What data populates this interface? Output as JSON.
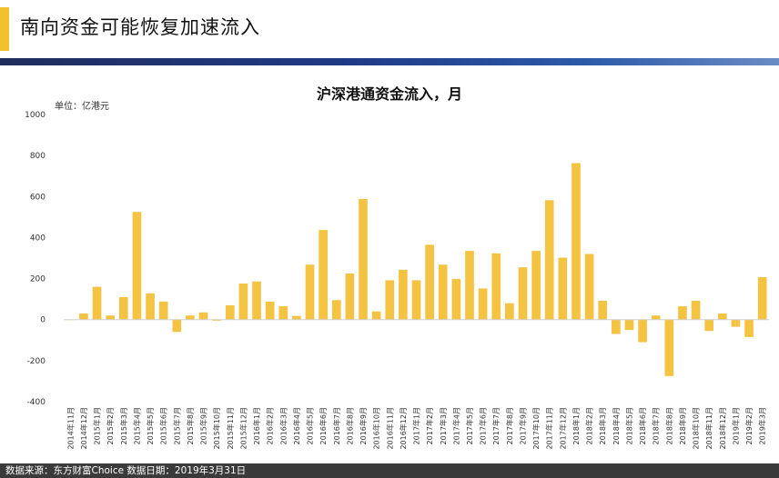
{
  "header": {
    "title": "南向资金可能恢复加速流入"
  },
  "footer": {
    "text": "数据来源：东方财富Choice    数据日期：2019年3月31日"
  },
  "colors": {
    "accent": "#f4c12e",
    "bar": "#f5c342"
  },
  "chart_data": {
    "type": "bar",
    "title": "沪深港通资金流入，月",
    "unit": "单位：亿港元",
    "xlabel": "",
    "ylabel": "",
    "ylim": [
      -400,
      1000
    ],
    "yticks": [
      -400,
      -200,
      0,
      200,
      400,
      600,
      800,
      1000
    ],
    "grid": false,
    "categories": [
      "2014年11月",
      "2014年12月",
      "2015年1月",
      "2015年2月",
      "2015年3月",
      "2015年4月",
      "2015年5月",
      "2015年6月",
      "2015年7月",
      "2015年8月",
      "2015年9月",
      "2015年10月",
      "2015年11月",
      "2015年12月",
      "2016年1月",
      "2016年2月",
      "2016年3月",
      "2016年4月",
      "2016年5月",
      "2016年6月",
      "2016年7月",
      "2016年8月",
      "2016年9月",
      "2016年10月",
      "2016年11月",
      "2016年12月",
      "2017年1月",
      "2017年2月",
      "2017年3月",
      "2017年4月",
      "2017年5月",
      "2017年6月",
      "2017年7月",
      "2017年8月",
      "2017年9月",
      "2017年10月",
      "2017年11月",
      "2017年12月",
      "2018年1月",
      "2018年2月",
      "2018年3月",
      "2018年4月",
      "2018年5月",
      "2018年6月",
      "2018年7月",
      "2018年8月",
      "2018年9月",
      "2018年10月",
      "2018年11月",
      "2018年12月",
      "2019年1月",
      "2019年2月",
      "2019年3月"
    ],
    "values": [
      0,
      30,
      160,
      20,
      110,
      525,
      128,
      88,
      -60,
      20,
      35,
      -5,
      70,
      176,
      186,
      88,
      65,
      18,
      268,
      437,
      95,
      225,
      588,
      40,
      192,
      243,
      192,
      365,
      268,
      198,
      335,
      152,
      323,
      80,
      255,
      335,
      582,
      302,
      763,
      320,
      92,
      -70,
      -50,
      -110,
      20,
      -275,
      65,
      92,
      -55,
      30,
      -35,
      -85,
      207
    ]
  }
}
